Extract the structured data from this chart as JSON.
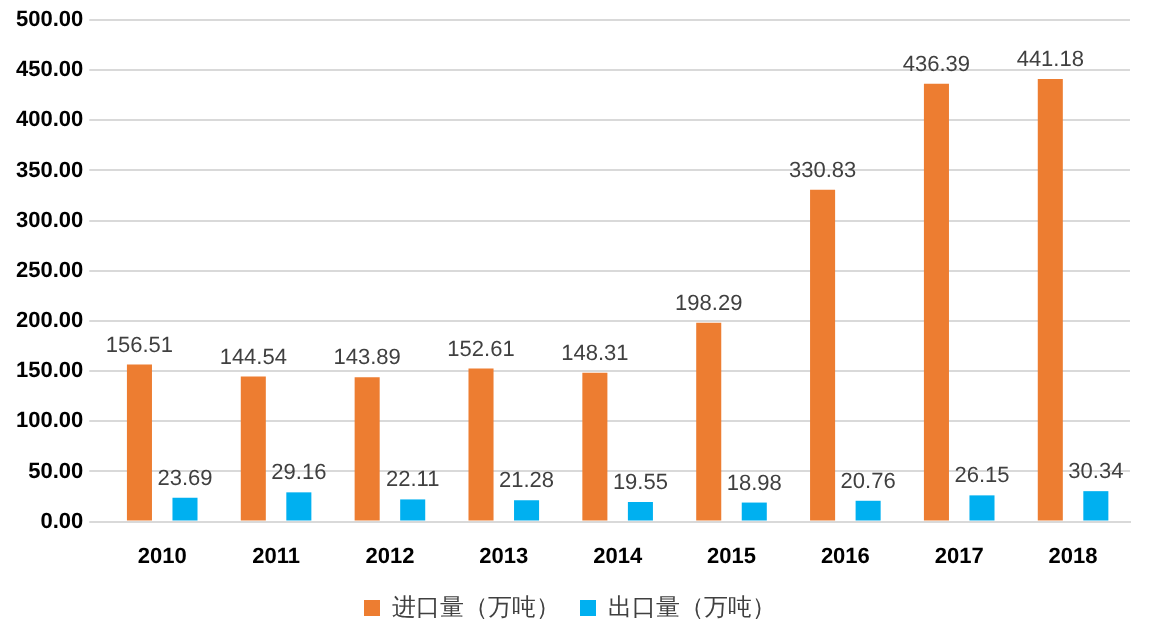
{
  "chart_data": {
    "type": "bar",
    "categories": [
      "2010",
      "2011",
      "2012",
      "2013",
      "2014",
      "2015",
      "2016",
      "2017",
      "2018"
    ],
    "series": [
      {
        "name": "进口量（万吨）",
        "color": "#ed7d31",
        "values": [
          156.51,
          144.54,
          143.89,
          152.61,
          148.31,
          198.29,
          330.83,
          436.39,
          441.18
        ]
      },
      {
        "name": "出口量（万吨）",
        "color": "#00b0f0",
        "values": [
          23.69,
          29.16,
          22.11,
          21.28,
          19.55,
          18.98,
          20.76,
          26.15,
          30.34
        ]
      }
    ],
    "ylim": [
      0,
      500
    ],
    "yticks": [
      {
        "value": 0,
        "label": "0.00"
      },
      {
        "value": 50,
        "label": "50.00"
      },
      {
        "value": 100,
        "label": "100.00"
      },
      {
        "value": 150,
        "label": "150.00"
      },
      {
        "value": 200,
        "label": "200.00"
      },
      {
        "value": 250,
        "label": "250.00"
      },
      {
        "value": 300,
        "label": "300.00"
      },
      {
        "value": 350,
        "label": "350.00"
      },
      {
        "value": 400,
        "label": "400.00"
      },
      {
        "value": 450,
        "label": "450.00"
      },
      {
        "value": 500,
        "label": "500.00"
      }
    ],
    "grid": "y",
    "legend": "bottom",
    "data_labels": true
  }
}
